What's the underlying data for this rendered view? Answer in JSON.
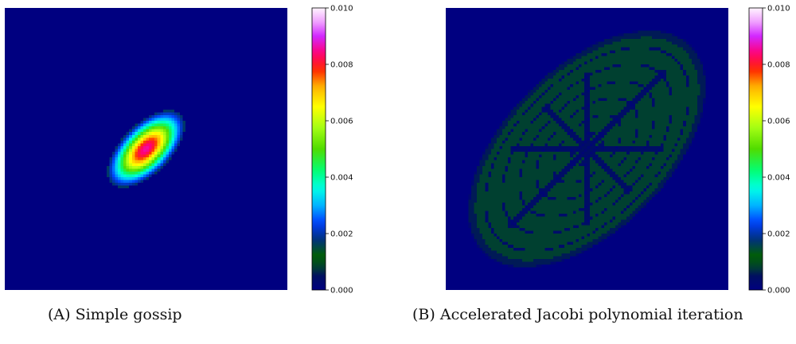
{
  "chart_data": [
    {
      "type": "heatmap",
      "panel_tag": "(A)",
      "caption": "Simple gossip",
      "colormap": "gist_ncar",
      "vmin": 0.0,
      "vmax": 0.01,
      "colorbar_ticks": [
        "0.000",
        "0.002",
        "0.004",
        "0.006",
        "0.008",
        "0.010"
      ],
      "colorbar_tick_values": [
        0.0,
        0.002,
        0.004,
        0.006,
        0.008,
        0.01
      ],
      "grid_size": 100,
      "description": "compact tilted elliptical bump centered in the grid",
      "peak_value": 0.0086,
      "peak_location": [
        50,
        50
      ],
      "axes_visible": false
    },
    {
      "type": "heatmap",
      "panel_tag": "(B)",
      "caption": "Accelerated Jacobi polynomial iteration",
      "colormap": "gist_ncar",
      "vmin": 0.0,
      "vmax": 0.01,
      "colorbar_ticks": [
        "0.000",
        "0.002",
        "0.004",
        "0.006",
        "0.008",
        "0.010"
      ],
      "colorbar_tick_values": [
        0.0,
        0.002,
        0.004,
        0.006,
        0.008,
        0.01
      ],
      "grid_size": 100,
      "description": "large tilted elliptical region of near-uniform low values with ring and diagonal-spoke texture",
      "plateau_value": 0.0008,
      "axes_visible": false
    }
  ]
}
